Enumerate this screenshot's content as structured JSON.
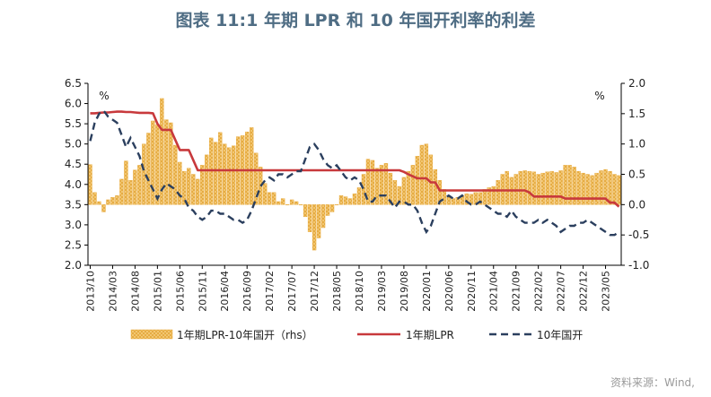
{
  "title": "图表 11:1 年期 LPR 和 10 年国开利率的利差",
  "source": "资料来源：Wind,",
  "chart_data": {
    "type": "bar-line",
    "categories": [
      "2013/10",
      "2013/11",
      "2013/12",
      "2014/01",
      "2014/02",
      "2014/03",
      "2014/04",
      "2014/05",
      "2014/06",
      "2014/07",
      "2014/08",
      "2014/09",
      "2014/10",
      "2014/11",
      "2014/12",
      "2015/01",
      "2015/02",
      "2015/03",
      "2015/04",
      "2015/05",
      "2015/06",
      "2015/07",
      "2015/08",
      "2015/09",
      "2015/10",
      "2015/11",
      "2015/12",
      "2016/01",
      "2016/02",
      "2016/03",
      "2016/04",
      "2016/05",
      "2016/06",
      "2016/07",
      "2016/08",
      "2016/09",
      "2016/10",
      "2016/11",
      "2016/12",
      "2017/01",
      "2017/02",
      "2017/03",
      "2017/04",
      "2017/05",
      "2017/06",
      "2017/07",
      "2017/08",
      "2017/09",
      "2017/10",
      "2017/11",
      "2017/12",
      "2018/01",
      "2018/02",
      "2018/03",
      "2018/04",
      "2018/05",
      "2018/06",
      "2018/07",
      "2018/08",
      "2018/09",
      "2018/10",
      "2018/11",
      "2018/12",
      "2019/01",
      "2019/02",
      "2019/03",
      "2019/04",
      "2019/05",
      "2019/06",
      "2019/07",
      "2019/08",
      "2019/09",
      "2019/10",
      "2019/11",
      "2019/12",
      "2020/01",
      "2020/02",
      "2020/03",
      "2020/04",
      "2020/05",
      "2020/06",
      "2020/07",
      "2020/08",
      "2020/09",
      "2020/10",
      "2020/11",
      "2020/12",
      "2021/01",
      "2021/02",
      "2021/03",
      "2021/04",
      "2021/05",
      "2021/06",
      "2021/07",
      "2021/08",
      "2021/09",
      "2021/10",
      "2021/11",
      "2021/12",
      "2022/01",
      "2022/02",
      "2022/03",
      "2022/04",
      "2022/05",
      "2022/06",
      "2022/07",
      "2022/08",
      "2022/09",
      "2022/10",
      "2022/11",
      "2022/12",
      "2023/01",
      "2023/02",
      "2023/03",
      "2023/04",
      "2023/05",
      "2023/06",
      "2023/07",
      "2023/08"
    ],
    "x_tick_labels": [
      "2013/10",
      "2014/03",
      "2014/08",
      "2015/01",
      "2015/06",
      "2015/11",
      "2016/04",
      "2016/09",
      "2017/02",
      "2017/07",
      "2017/12",
      "2018/05",
      "2018/10",
      "2019/03",
      "2019/08",
      "2020/01",
      "2020/06",
      "2020/11",
      "2021/04",
      "2021/09",
      "2022/02",
      "2022/07",
      "2022/12",
      "2023/05"
    ],
    "left_axis": {
      "min": 2.0,
      "max": 6.5,
      "step": 0.5,
      "unit": "%",
      "ticks": [
        "2.0",
        "2.5",
        "3.0",
        "3.5",
        "4.0",
        "4.5",
        "5.0",
        "5.5",
        "6.0",
        "6.5"
      ]
    },
    "right_axis": {
      "min": -1.0,
      "max": 2.0,
      "step": 0.5,
      "unit": "%",
      "ticks": [
        "-1.0",
        "-0.5",
        "0.0",
        "0.5",
        "1.0",
        "1.5",
        "2.0"
      ]
    },
    "series": [
      {
        "name": "1年期LPR-10年国开（rhs）",
        "kind": "bar",
        "axis": "right",
        "color": "#f0b850",
        "values": [
          0.66,
          0.2,
          0.05,
          -0.12,
          0.08,
          0.12,
          0.15,
          0.42,
          0.72,
          0.4,
          0.57,
          0.65,
          1.0,
          1.18,
          1.38,
          1.32,
          1.75,
          1.4,
          1.35,
          0.98,
          0.7,
          0.55,
          0.6,
          0.5,
          0.42,
          0.65,
          0.82,
          1.1,
          1.03,
          1.19,
          1.0,
          0.94,
          0.97,
          1.12,
          1.14,
          1.2,
          1.27,
          0.85,
          0.62,
          0.35,
          0.2,
          0.2,
          0.05,
          0.1,
          0.0,
          0.08,
          0.05,
          0.0,
          -0.2,
          -0.45,
          -0.75,
          -0.55,
          -0.38,
          -0.18,
          -0.12,
          0.0,
          0.15,
          0.13,
          0.1,
          0.18,
          0.28,
          0.5,
          0.75,
          0.73,
          0.6,
          0.65,
          0.68,
          0.52,
          0.4,
          0.3,
          0.45,
          0.55,
          0.65,
          0.8,
          0.98,
          1.0,
          0.82,
          0.58,
          0.4,
          0.25,
          0.15,
          0.1,
          0.12,
          0.15,
          0.18,
          0.17,
          0.2,
          0.2,
          0.25,
          0.28,
          0.3,
          0.4,
          0.5,
          0.55,
          0.45,
          0.5,
          0.55,
          0.56,
          0.55,
          0.54,
          0.5,
          0.52,
          0.54,
          0.55,
          0.53,
          0.56,
          0.65,
          0.65,
          0.62,
          0.55,
          0.52,
          0.5,
          0.48,
          0.52,
          0.56,
          0.58,
          0.55,
          0.5,
          0.48
        ]
      },
      {
        "name": "1年期LPR",
        "kind": "line",
        "axis": "left",
        "color": "#c8393c",
        "values": [
          5.76,
          5.76,
          5.77,
          5.78,
          5.78,
          5.79,
          5.8,
          5.8,
          5.79,
          5.79,
          5.78,
          5.77,
          5.77,
          5.77,
          5.76,
          5.5,
          5.35,
          5.35,
          5.35,
          5.1,
          4.85,
          4.85,
          4.85,
          4.6,
          4.35,
          4.35,
          4.35,
          4.35,
          4.35,
          4.35,
          4.35,
          4.35,
          4.35,
          4.35,
          4.35,
          4.35,
          4.35,
          4.35,
          4.35,
          4.35,
          4.35,
          4.35,
          4.35,
          4.35,
          4.35,
          4.35,
          4.35,
          4.35,
          4.35,
          4.35,
          4.35,
          4.35,
          4.35,
          4.35,
          4.35,
          4.35,
          4.35,
          4.35,
          4.35,
          4.35,
          4.35,
          4.35,
          4.35,
          4.35,
          4.35,
          4.35,
          4.35,
          4.35,
          4.35,
          4.35,
          4.31,
          4.25,
          4.2,
          4.15,
          4.15,
          4.15,
          4.05,
          4.05,
          3.85,
          3.85,
          3.85,
          3.85,
          3.85,
          3.85,
          3.85,
          3.85,
          3.85,
          3.85,
          3.85,
          3.85,
          3.85,
          3.85,
          3.85,
          3.85,
          3.85,
          3.85,
          3.85,
          3.85,
          3.8,
          3.7,
          3.7,
          3.7,
          3.7,
          3.7,
          3.7,
          3.7,
          3.65,
          3.65,
          3.65,
          3.65,
          3.65,
          3.65,
          3.65,
          3.65,
          3.65,
          3.65,
          3.55,
          3.55,
          3.45
        ]
      },
      {
        "name": "10年国开",
        "kind": "dashed-line",
        "axis": "right",
        "color": "#2b3f5e",
        "values": [
          1.05,
          1.35,
          1.5,
          1.55,
          1.45,
          1.4,
          1.35,
          1.15,
          0.95,
          1.1,
          0.95,
          0.8,
          0.55,
          0.4,
          0.25,
          0.1,
          0.25,
          0.35,
          0.3,
          0.25,
          0.15,
          0.1,
          -0.05,
          -0.1,
          -0.2,
          -0.25,
          -0.2,
          -0.1,
          -0.1,
          -0.15,
          -0.15,
          -0.2,
          -0.25,
          -0.25,
          -0.3,
          -0.25,
          -0.1,
          0.1,
          0.3,
          0.4,
          0.45,
          0.4,
          0.5,
          0.5,
          0.45,
          0.5,
          0.55,
          0.55,
          0.75,
          0.95,
          1.0,
          0.9,
          0.75,
          0.65,
          0.6,
          0.65,
          0.55,
          0.45,
          0.4,
          0.45,
          0.4,
          0.25,
          0.05,
          0.05,
          0.15,
          0.15,
          0.15,
          0.05,
          -0.05,
          0.05,
          0.05,
          0.0,
          0.0,
          -0.1,
          -0.3,
          -0.45,
          -0.35,
          -0.15,
          0.05,
          0.1,
          0.15,
          0.1,
          0.1,
          0.15,
          0.05,
          0.0,
          0.0,
          0.05,
          0.0,
          -0.05,
          -0.1,
          -0.15,
          -0.15,
          -0.2,
          -0.1,
          -0.2,
          -0.25,
          -0.3,
          -0.3,
          -0.3,
          -0.25,
          -0.3,
          -0.25,
          -0.3,
          -0.35,
          -0.45,
          -0.4,
          -0.35,
          -0.35,
          -0.3,
          -0.3,
          -0.25,
          -0.3,
          -0.35,
          -0.4,
          -0.45,
          -0.5,
          -0.5,
          -0.45
        ]
      }
    ],
    "legend": {
      "position": "bottom",
      "labels": [
        "1年期LPR-10年国开（rhs）",
        "1年期LPR",
        "10年国开"
      ]
    },
    "grid": false
  }
}
